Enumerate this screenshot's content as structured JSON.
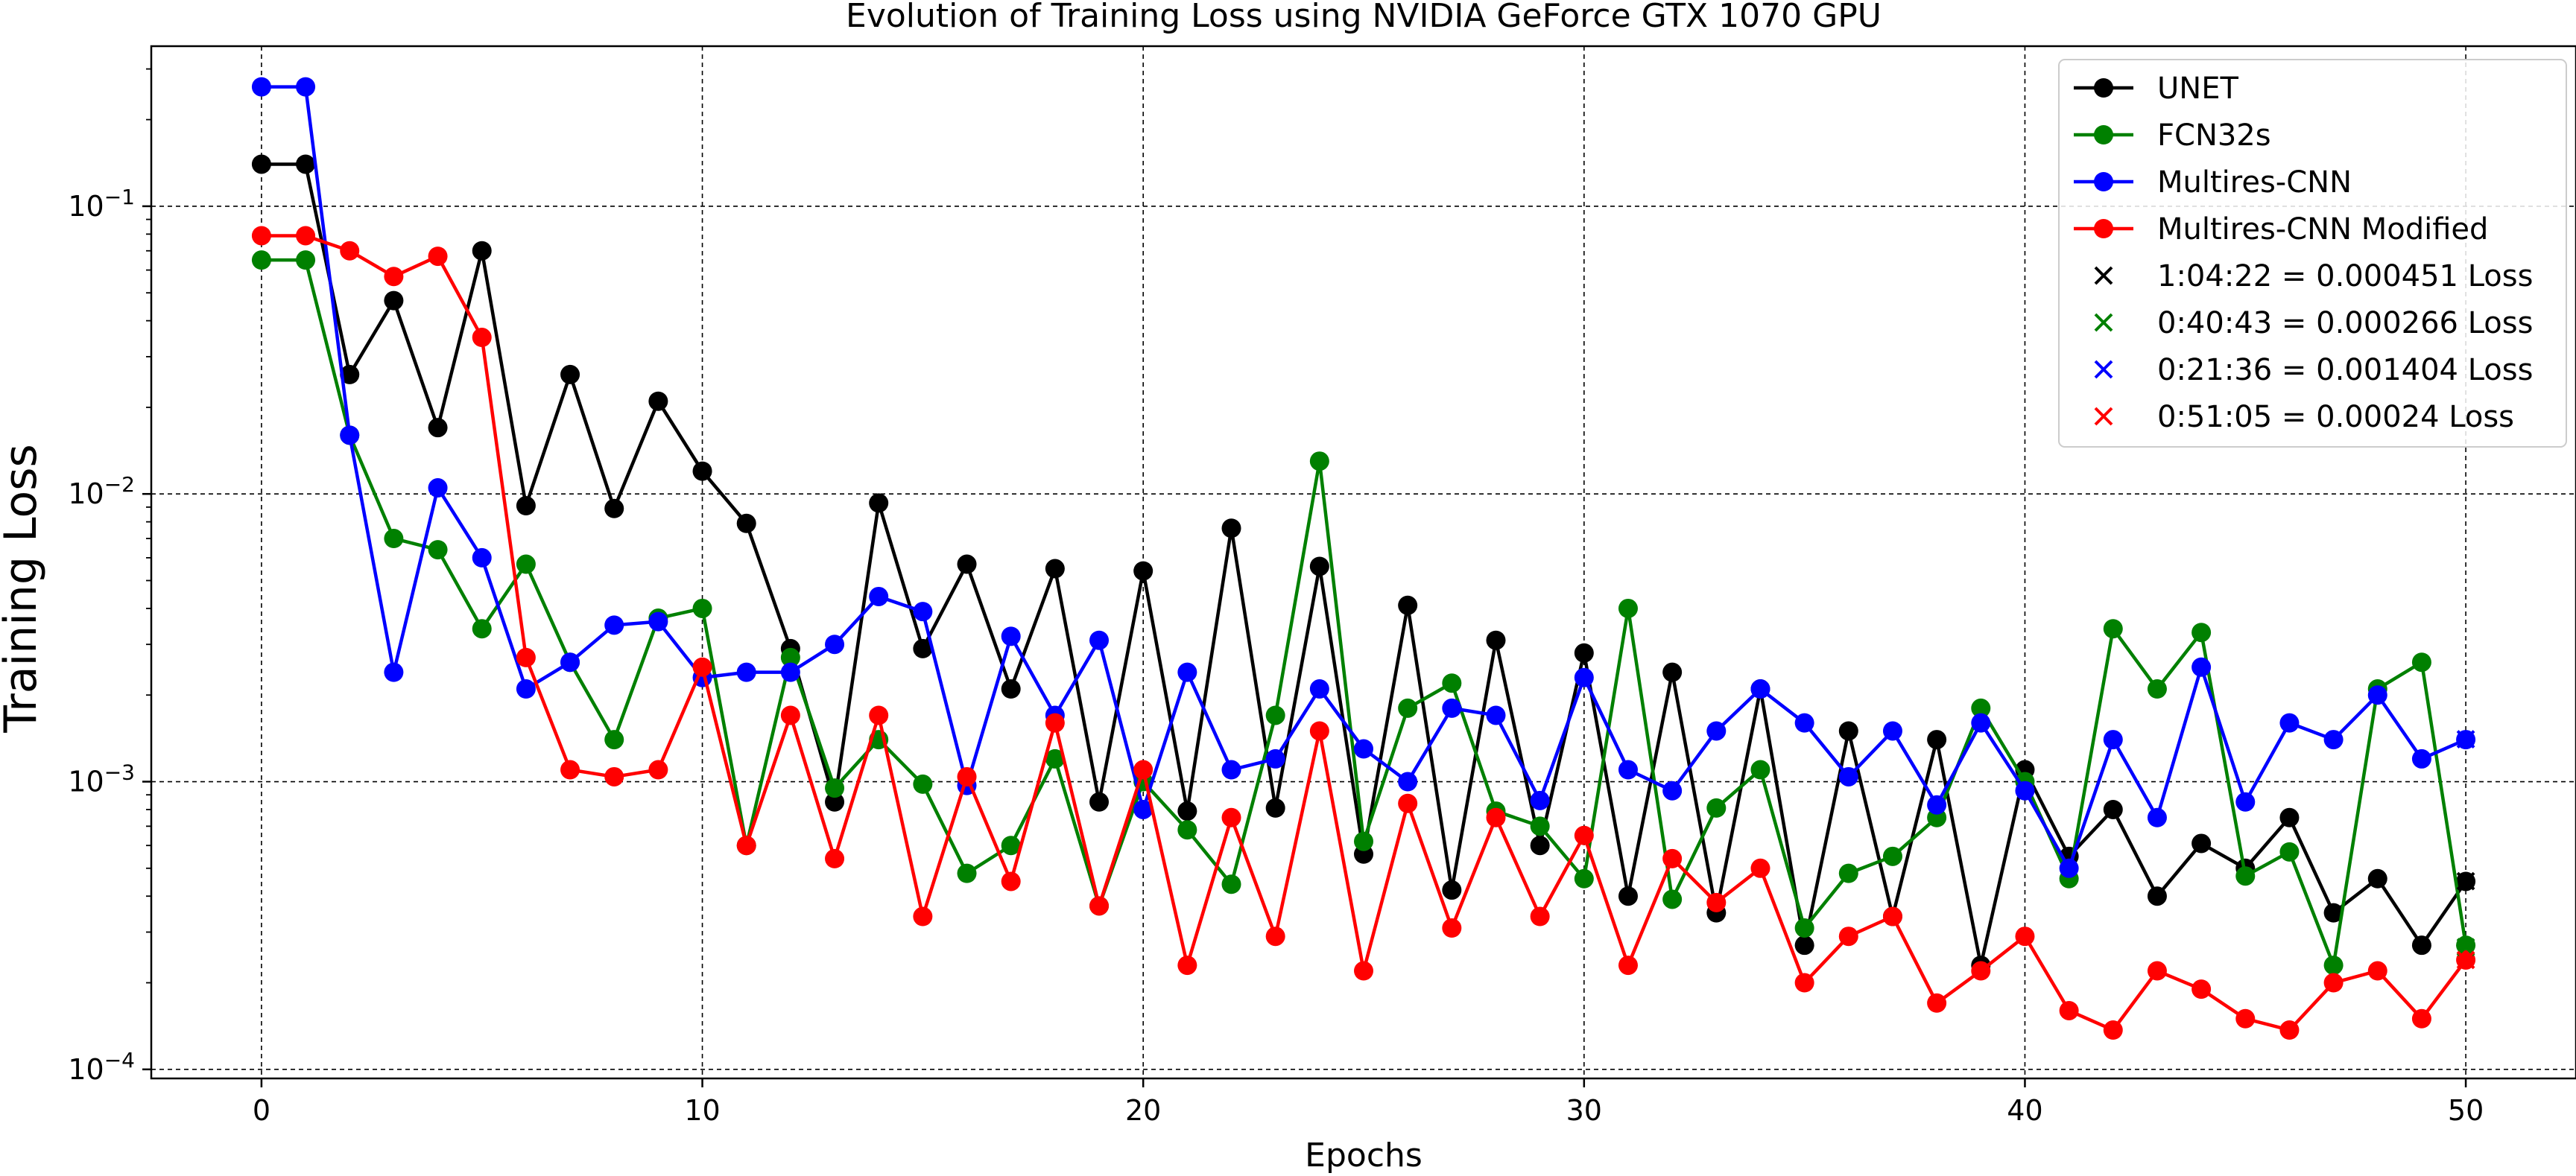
{
  "chart_data": {
    "type": "line",
    "title": "Evolution of Training Loss using NVIDIA GeForce GTX 1070 GPU",
    "xlabel": "Epochs",
    "ylabel": "Training Loss",
    "yscale": "log",
    "xlim": [
      -2.5,
      52.5
    ],
    "ylim": [
      9.3e-05,
      0.36
    ],
    "x_ticks": [
      "0",
      "10",
      "20",
      "30",
      "40",
      "50"
    ],
    "y_ticks": [
      "10^-4",
      "10^-3",
      "10^-2",
      "10^-1"
    ],
    "grid": true,
    "legend_position": "top-right",
    "x": [
      0,
      1,
      2,
      3,
      4,
      5,
      6,
      7,
      8,
      9,
      10,
      11,
      12,
      13,
      14,
      15,
      16,
      17,
      18,
      19,
      20,
      21,
      22,
      23,
      24,
      25,
      26,
      27,
      28,
      29,
      30,
      31,
      32,
      33,
      34,
      35,
      36,
      37,
      38,
      39,
      40,
      41,
      42,
      43,
      44,
      45,
      46,
      47,
      48,
      49,
      50
    ],
    "series": [
      {
        "name": "UNET",
        "color": "#000000",
        "values": [
          0.14,
          0.14,
          0.026,
          0.047,
          0.017,
          0.07,
          0.0091,
          0.026,
          0.0089,
          0.021,
          0.012,
          0.0079,
          0.0029,
          0.00085,
          0.0093,
          0.0029,
          0.0057,
          0.0021,
          0.0055,
          0.00085,
          0.0054,
          0.00079,
          0.0076,
          0.00081,
          0.0056,
          0.00056,
          0.0041,
          0.00042,
          0.0031,
          0.0006,
          0.0028,
          0.0004,
          0.0024,
          0.00035,
          0.0021,
          0.00027,
          0.0015,
          0.00034,
          0.0014,
          0.00023,
          0.0011,
          0.00055,
          0.0008,
          0.0004,
          0.00061,
          0.0005,
          0.00075,
          0.00035,
          0.00046,
          0.00027,
          0.00045
        ]
      },
      {
        "name": "FCN32s",
        "color": "#008000",
        "values": [
          0.065,
          0.065,
          0.016,
          0.007,
          0.0064,
          0.0034,
          0.0057,
          0.0026,
          0.0014,
          0.0037,
          0.004,
          0.0006,
          0.0027,
          0.00095,
          0.0014,
          0.00098,
          0.00048,
          0.0006,
          0.0012,
          0.00037,
          0.001,
          0.00068,
          0.00044,
          0.0017,
          0.013,
          0.00062,
          0.0018,
          0.0022,
          0.00079,
          0.0007,
          0.00046,
          0.004,
          0.00039,
          0.00081,
          0.0011,
          0.00031,
          0.00048,
          0.00055,
          0.00075,
          0.0018,
          0.001,
          0.00046,
          0.0034,
          0.0021,
          0.0033,
          0.00047,
          0.00057,
          0.00023,
          0.0021,
          0.0026,
          0.00027
        ]
      },
      {
        "name": "Multires-CNN",
        "color": "#0000ff",
        "values": [
          0.26,
          0.26,
          0.016,
          0.0024,
          0.0105,
          0.006,
          0.0021,
          0.0026,
          0.0035,
          0.0036,
          0.0023,
          0.0024,
          0.0024,
          0.003,
          0.0044,
          0.0039,
          0.00097,
          0.0032,
          0.0017,
          0.0031,
          0.0008,
          0.0024,
          0.0011,
          0.0012,
          0.0021,
          0.0013,
          0.001,
          0.0018,
          0.0017,
          0.00086,
          0.0023,
          0.0011,
          0.00093,
          0.0015,
          0.0021,
          0.0016,
          0.00104,
          0.0015,
          0.00083,
          0.0016,
          0.00093,
          0.0005,
          0.0014,
          0.00075,
          0.0025,
          0.00085,
          0.0016,
          0.0014,
          0.002,
          0.0012,
          0.0014
        ]
      },
      {
        "name": "Multires-CNN Modified",
        "color": "#ff0000",
        "values": [
          0.079,
          0.079,
          0.07,
          0.057,
          0.067,
          0.035,
          0.0027,
          0.0011,
          0.00104,
          0.0011,
          0.0025,
          0.0006,
          0.0017,
          0.00054,
          0.0017,
          0.00034,
          0.00104,
          0.00045,
          0.0016,
          0.00037,
          0.0011,
          0.00023,
          0.00075,
          0.00029,
          0.0015,
          0.00022,
          0.00084,
          0.00031,
          0.00075,
          0.00034,
          0.00065,
          0.00023,
          0.00054,
          0.00038,
          0.0005,
          0.0002,
          0.00029,
          0.00034,
          0.00017,
          0.00022,
          0.00029,
          0.00016,
          0.000137,
          0.00022,
          0.00019,
          0.00015,
          0.000137,
          0.0002,
          0.00022,
          0.00015,
          0.00024
        ]
      }
    ],
    "final_markers": [
      {
        "label": "1:04:22 = 0.000451 Loss",
        "x": 50,
        "y": 0.000451,
        "color": "#000000"
      },
      {
        "label": "0:40:43 = 0.000266 Loss",
        "x": 50,
        "y": 0.000266,
        "color": "#008000"
      },
      {
        "label": "0:21:36 = 0.001404 Loss",
        "x": 50,
        "y": 0.001404,
        "color": "#0000ff"
      },
      {
        "label": "0:51:05 = 0.00024 Loss",
        "x": 50,
        "y": 0.00024,
        "color": "#ff0000"
      }
    ]
  }
}
